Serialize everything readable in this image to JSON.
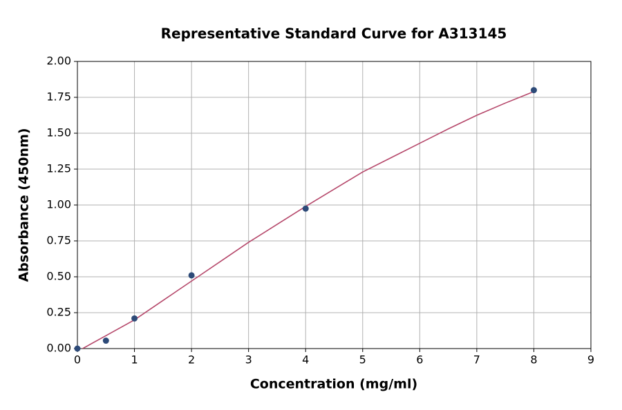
{
  "chart_data": {
    "type": "scatter",
    "title": "Representative Standard Curve for A313145",
    "x_label": "Concentration (mg/ml)",
    "y_label": "Absorbance (450nm)",
    "x": [
      0,
      0.5,
      1,
      2,
      4,
      8
    ],
    "values": [
      0,
      0.055,
      0.21,
      0.51,
      0.975,
      1.8
    ],
    "color": "#2d4a78",
    "fit": {
      "color": "#b5476a",
      "x": [
        0,
        0.5,
        1,
        1.5,
        2,
        2.5,
        3,
        3.5,
        4,
        4.5,
        5,
        5.5,
        6,
        6.5,
        7,
        7.5,
        8
      ],
      "values": [
        -0.02,
        0.09,
        0.2,
        0.335,
        0.47,
        0.605,
        0.74,
        0.865,
        0.99,
        1.11,
        1.23,
        1.33,
        1.43,
        1.53,
        1.625,
        1.71,
        1.79
      ]
    },
    "xlim": [
      0,
      9
    ],
    "xticks": [
      0,
      1,
      2,
      3,
      4,
      5,
      6,
      7,
      8,
      9
    ],
    "ylim": [
      0,
      2
    ],
    "yticks": [
      {
        "value": 0,
        "label": "0.00"
      },
      {
        "value": 0.25,
        "label": "0.25"
      },
      {
        "value": 0.5,
        "label": "0.50"
      },
      {
        "value": 0.75,
        "label": "0.75"
      },
      {
        "value": 1,
        "label": "1.00"
      },
      {
        "value": 1.25,
        "label": "1.25"
      },
      {
        "value": 1.5,
        "label": "1.50"
      },
      {
        "value": 1.75,
        "label": "1.75"
      },
      {
        "value": 2,
        "label": "2.00"
      }
    ],
    "grid": true
  }
}
